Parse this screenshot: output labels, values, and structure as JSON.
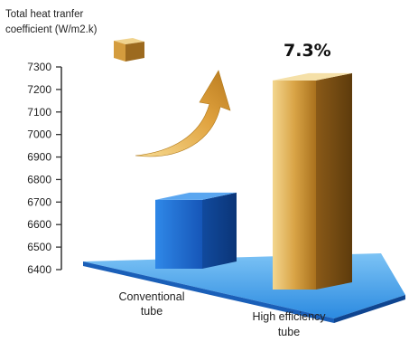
{
  "chart_data": {
    "type": "bar",
    "title": "",
    "ylabel_lines": [
      "Total heat tranfer",
      "coefficient (W/m2.k)"
    ],
    "xlabel": "",
    "ylim": [
      6400,
      7300
    ],
    "y_ticks": [
      "6400",
      "6500",
      "6600",
      "6700",
      "6800",
      "6900",
      "7000",
      "7100",
      "7200",
      "7300"
    ],
    "categories": [
      {
        "lines": [
          "Conventional",
          "tube"
        ]
      },
      {
        "lines": [
          "High efficiency",
          "tube"
        ]
      }
    ],
    "values": [
      6710,
      7240
    ],
    "annotation": "7.3%",
    "colors": {
      "conventional": "#1e6fd9",
      "high_efficiency": "#d4a24a",
      "platform": "#3a9be8",
      "arrow": "#e3ad45"
    },
    "legend_icon": "gold-cube-icon",
    "grid": false
  }
}
